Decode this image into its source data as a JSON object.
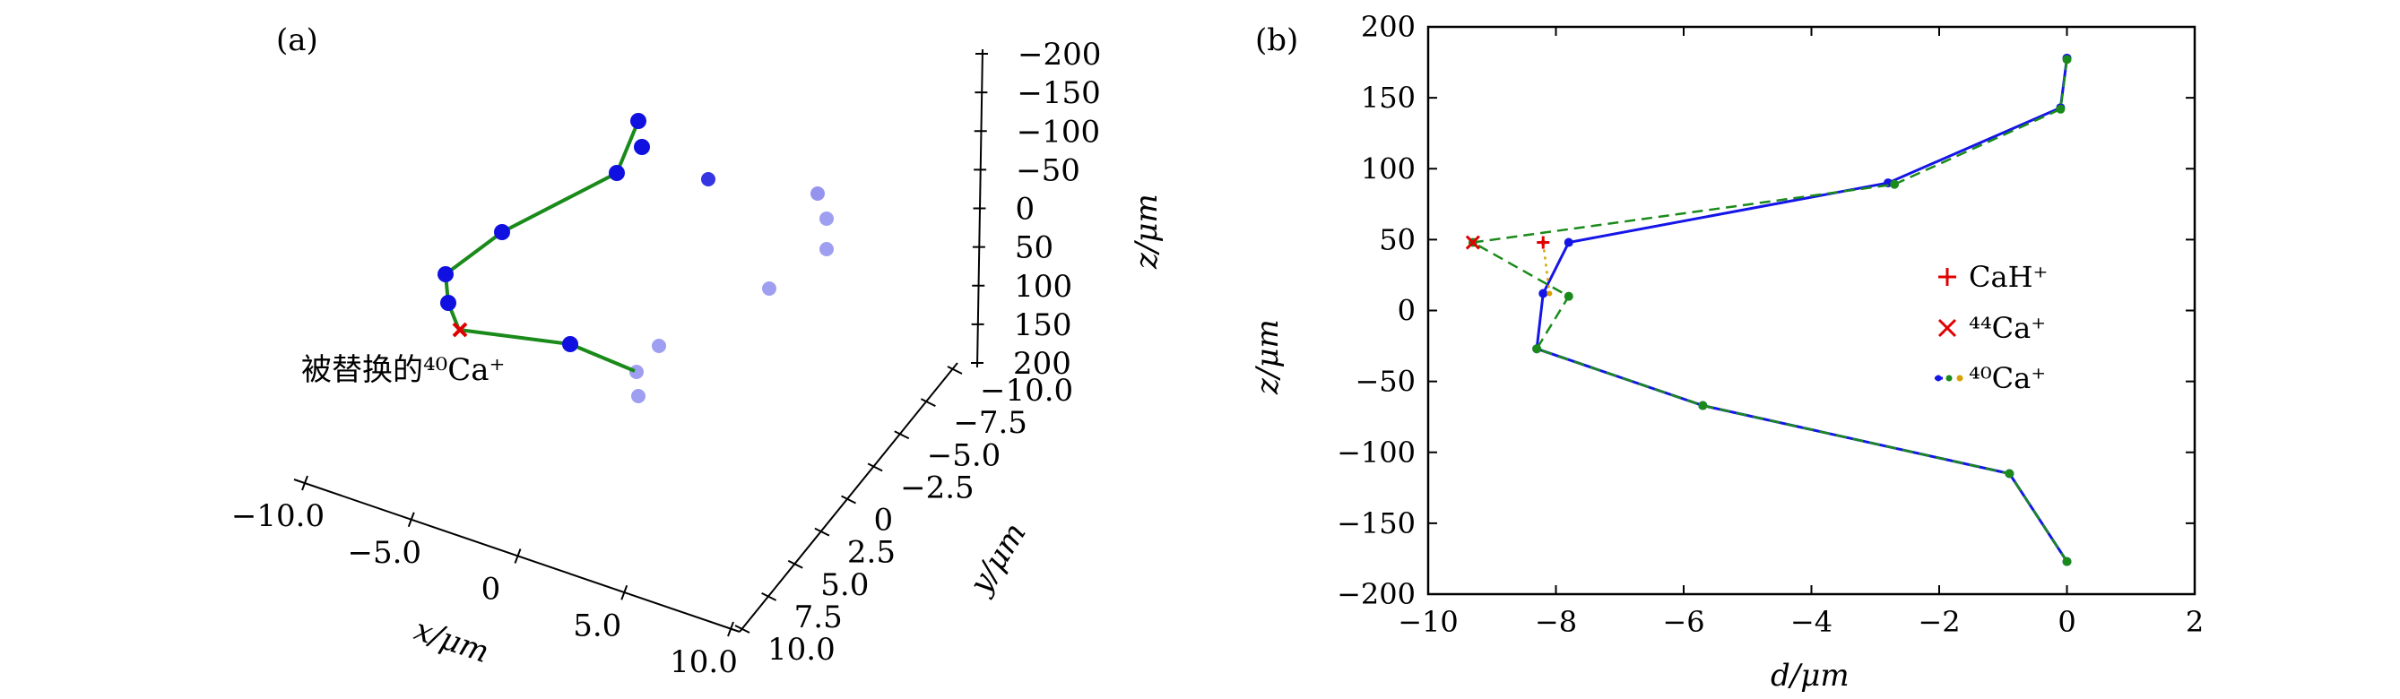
{
  "chart_data": [
    {
      "type": "scatter",
      "panel_label": "(a)",
      "annotation": "被替换的⁴⁰Ca⁺",
      "xlabel": "x/μm",
      "ylabel": "y/μm",
      "zlabel": "z/μm",
      "x_ticks": [
        "−10.0",
        "−5.0",
        "0",
        "5.0",
        "10.0"
      ],
      "y_ticks": [
        "−10.0",
        "−7.5",
        "−5.0",
        "−2.5",
        "0",
        "2.5",
        "5.0",
        "7.5",
        "10.0"
      ],
      "z_ticks": [
        "−200",
        "−150",
        "−100",
        "−50",
        "0",
        "50",
        "100",
        "150",
        "200"
      ],
      "series": [
        {
          "color": "#1010e0",
          "points": [
            [
              0.0,
              0.0,
              178
            ],
            [
              -0.5,
              -0.5,
              145
            ],
            [
              -2.8,
              0.8,
              90
            ],
            [
              -7.8,
              1.5,
              48
            ],
            [
              -8.2,
              2.0,
              12
            ],
            [
              -8.3,
              2.5,
              -27
            ],
            [
              -5.7,
              3.0,
              -67
            ],
            [
              -0.9,
              2.5,
              -115
            ],
            [
              0.0,
              3.0,
              -177
            ]
          ]
        },
        {
          "color": "#e00000",
          "marker": "x",
          "points": [
            [
              -9.3,
              2.2,
              48
            ]
          ]
        }
      ]
    },
    {
      "type": "line",
      "panel_label": "(b)",
      "xlabel": "d/μm",
      "ylabel": "z/μm",
      "xlim": [
        -10,
        2
      ],
      "ylim": [
        -200,
        200
      ],
      "x_ticks": [
        "−10",
        "−8",
        "−6",
        "−4",
        "−2",
        "0",
        "2"
      ],
      "y_ticks": [
        "200",
        "150",
        "100",
        "50",
        "0",
        "−50",
        "−100",
        "−150",
        "−200"
      ],
      "legend_position": "right",
      "legend": [
        "CaH⁺",
        "⁴⁴Ca⁺",
        "⁴⁰Ca⁺"
      ],
      "series": [
        {
          "color": "#1515e8",
          "style": "solid",
          "points": [
            [
              0.0,
              178
            ],
            [
              -0.1,
              143
            ],
            [
              -2.8,
              90
            ],
            [
              -7.8,
              48
            ],
            [
              -8.2,
              12
            ],
            [
              -8.3,
              -27
            ],
            [
              -5.7,
              -67
            ],
            [
              -0.9,
              -115
            ],
            [
              0.0,
              -177
            ]
          ]
        },
        {
          "color": "#1a8a1a",
          "style": "dashed",
          "points": [
            [
              0.0,
              177
            ],
            [
              -0.1,
              142
            ],
            [
              -2.7,
              89
            ],
            [
              -9.3,
              48
            ],
            [
              -7.8,
              10
            ],
            [
              -8.3,
              -27
            ],
            [
              -5.7,
              -67
            ],
            [
              -0.9,
              -115
            ],
            [
              0.0,
              -177
            ]
          ]
        },
        {
          "color": "#d9a000",
          "style": "dotted",
          "points": [
            [
              -8.2,
              48
            ],
            [
              -8.1,
              12
            ]
          ]
        },
        {
          "color": "#e00000",
          "marker": "+",
          "points": [
            [
              -8.2,
              48
            ]
          ]
        },
        {
          "color": "#e00000",
          "marker": "x",
          "points": [
            [
              -9.3,
              48
            ]
          ]
        }
      ]
    }
  ]
}
